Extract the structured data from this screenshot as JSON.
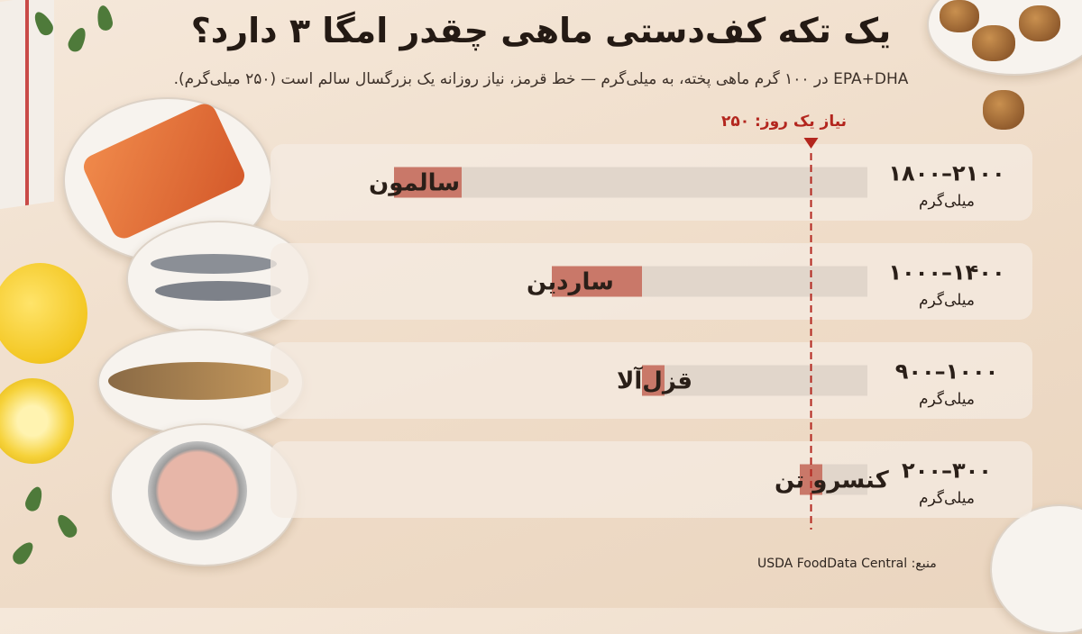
{
  "header": {
    "title": "یک تکه کف‌دستی ماهی چقدر امگا ۳ دارد؟",
    "subtitle": "EPA+DHA در ۱۰۰ گرم ماهی پخته، به میلی‌گرم — خط قرمز، نیاز روزانه یک بزرگسال سالم است (۲۵۰ میلی‌گرم)."
  },
  "source": "منبع: USDA FoodData Central",
  "colors": {
    "bar_fill": "#c97869",
    "track": "#e1d6cb",
    "row_bg": "#f4ebe2",
    "reference": "#b3261e"
  },
  "decor": {
    "icons": [
      "salmon-plate-icon",
      "sardine-plate-icon",
      "trout-plate-icon",
      "canned-tuna-icon",
      "lemon-icon",
      "walnut-icon",
      "herb-leaf-icon",
      "towel-icon"
    ]
  },
  "chart_data": {
    "type": "bar",
    "orientation": "horizontal",
    "unit": "میلی‌گرم",
    "xlim": [
      0,
      2100
    ],
    "reference": {
      "value": 250,
      "label": "نیاز یک روز: ۲۵۰"
    },
    "categories": [
      {
        "name": "سالمون",
        "min": 1800,
        "max": 2100,
        "range_label": "۱۸۰۰–۲۱۰۰",
        "unit_label": "میلی‌گرم"
      },
      {
        "name": "ساردین",
        "min": 1000,
        "max": 1400,
        "range_label": "۱۰۰۰–۱۴۰۰",
        "unit_label": "میلی‌گرم"
      },
      {
        "name": "قزل‌آلا",
        "min": 900,
        "max": 1000,
        "range_label": "۹۰۰–۱۰۰۰",
        "unit_label": "میلی‌گرم"
      },
      {
        "name": "کنسرو تن",
        "min": 200,
        "max": 300,
        "range_label": "۲۰۰–۳۰۰",
        "unit_label": "میلی‌گرم"
      }
    ]
  }
}
